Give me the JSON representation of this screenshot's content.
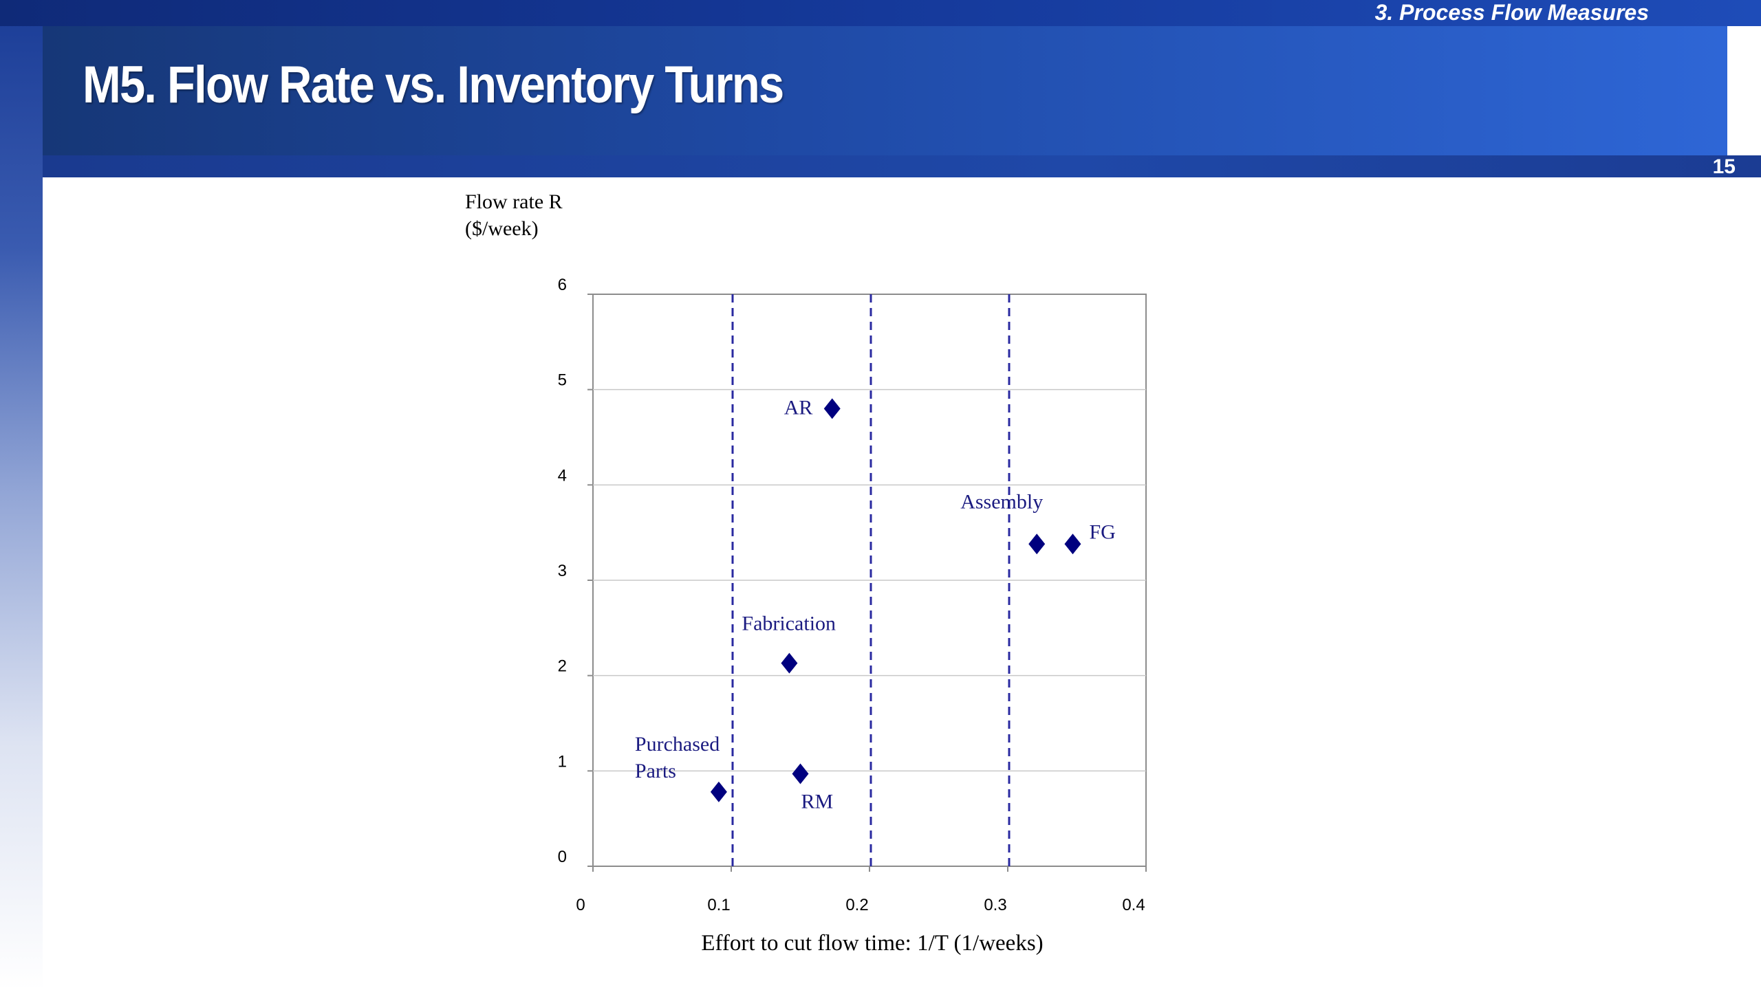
{
  "header": {
    "section": "3. Process Flow Measures",
    "title": "M5. Flow Rate vs. Inventory Turns",
    "page_number": "15"
  },
  "colors": {
    "header_dark": "#163777",
    "header_light": "#2e66d6",
    "marker": "#00007f",
    "label": "#1a1a80",
    "reference_line": "#2a2aa0"
  },
  "chart_data": {
    "type": "scatter",
    "ylabel_line1": "Flow rate R",
    "ylabel_line2": "($/week)",
    "xlabel": "Effort to cut flow time: 1/T (1/weeks)",
    "xlim": [
      0,
      0.4
    ],
    "ylim": [
      0,
      6
    ],
    "x_ticks": [
      0,
      0.1,
      0.2,
      0.3,
      0.4
    ],
    "x_tick_labels": [
      "0",
      "0.1",
      "0.2",
      "0.3",
      "0.4"
    ],
    "y_ticks": [
      0,
      1,
      2,
      3,
      4,
      5,
      6
    ],
    "y_tick_labels": [
      "0",
      "1",
      "2",
      "3",
      "4",
      "5",
      "6"
    ],
    "grid": "horizontal",
    "reference_lines_x": [
      0.1,
      0.2,
      0.3
    ],
    "points": [
      {
        "label_lines": [
          "AR"
        ],
        "x": 0.173,
        "y": 4.8
      },
      {
        "label_lines": [
          "Assembly"
        ],
        "x": 0.321,
        "y": 3.38
      },
      {
        "label_lines": [
          "FG"
        ],
        "x": 0.347,
        "y": 3.38
      },
      {
        "label_lines": [
          "Fabrication"
        ],
        "x": 0.142,
        "y": 2.13
      },
      {
        "label_lines": [
          "RM"
        ],
        "x": 0.15,
        "y": 0.97
      },
      {
        "label_lines": [
          "Purchased",
          "Parts"
        ],
        "x": 0.091,
        "y": 0.78
      }
    ]
  }
}
